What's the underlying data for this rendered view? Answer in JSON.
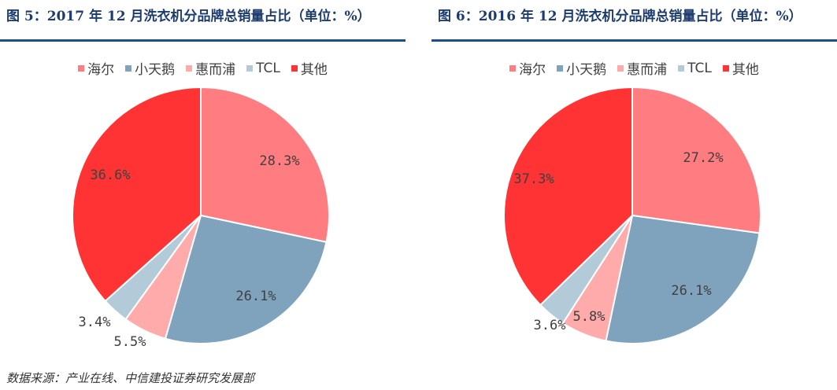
{
  "source": "数据来源：产业在线、中信建投证券研究发展部",
  "chart_data": [
    {
      "type": "pie",
      "title": "图 5：2017 年 12 月洗衣机分品牌总销量占比（单位：%）",
      "legend_position": "top",
      "categories": [
        "海尔",
        "小天鹅",
        "惠而浦",
        "TCL",
        "其他"
      ],
      "values": [
        28.3,
        26.1,
        5.5,
        3.4,
        36.6
      ],
      "value_labels": [
        "28.3%",
        "26.1%",
        "5.5%",
        "3.4%",
        "36.6%"
      ],
      "colors": [
        "#ff7c80",
        "#7fa3bc",
        "#ffabab",
        "#b3cad9",
        "#ff3333"
      ]
    },
    {
      "type": "pie",
      "title": "图 6：2016 年 12 月洗衣机分品牌总销量占比（单位：%）",
      "legend_position": "top",
      "categories": [
        "海尔",
        "小天鹅",
        "惠而浦",
        "TCL",
        "其他"
      ],
      "values": [
        27.2,
        26.1,
        5.8,
        3.6,
        37.3
      ],
      "value_labels": [
        "27.2%",
        "26.1%",
        "5.8%",
        "3.6%",
        "37.3%"
      ],
      "colors": [
        "#ff7c80",
        "#7fa3bc",
        "#ffabab",
        "#b3cad9",
        "#ff3333"
      ]
    }
  ]
}
